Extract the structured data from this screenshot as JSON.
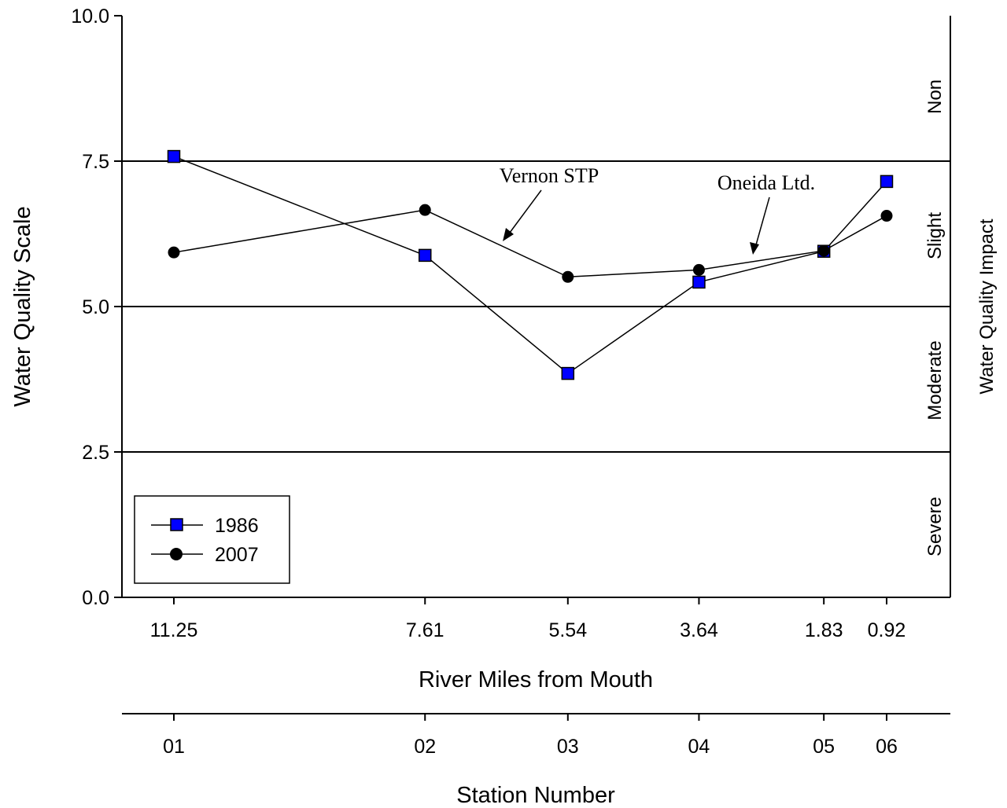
{
  "chart_data": {
    "type": "line",
    "x_label": "River Miles from Mouth",
    "x_categories": [
      "11.25",
      "7.61",
      "5.54",
      "3.64",
      "1.83",
      "0.92"
    ],
    "x_values": [
      11.25,
      7.61,
      5.54,
      3.64,
      1.83,
      0.92
    ],
    "secondary_x_label": "Station Number",
    "stations": [
      "01",
      "02",
      "03",
      "04",
      "05",
      "06"
    ],
    "y_label": "Water Quality Scale",
    "y_range": [
      0,
      10
    ],
    "y_ticks": [
      "0.0",
      "2.5",
      "5.0",
      "7.5",
      "10.0"
    ],
    "secondary_y_label": "Water Quality Impact",
    "impact_zones": [
      "Non",
      "Slight",
      "Moderate",
      "Severe"
    ],
    "threshold_lines": [
      2.5,
      5.0,
      7.5
    ],
    "series": [
      {
        "name": "1986",
        "marker": "square",
        "color": "#0000ff",
        "values": [
          7.58,
          5.88,
          3.85,
          5.42,
          5.95,
          7.15
        ]
      },
      {
        "name": "2007",
        "marker": "circle",
        "color": "#000000",
        "values": [
          5.93,
          6.66,
          5.51,
          5.63,
          5.96,
          6.56
        ]
      }
    ],
    "annotations": [
      {
        "text": "Vernon STP"
      },
      {
        "text": "Oneida Ltd."
      }
    ],
    "legend_position": "bottom-left",
    "grid": false
  }
}
